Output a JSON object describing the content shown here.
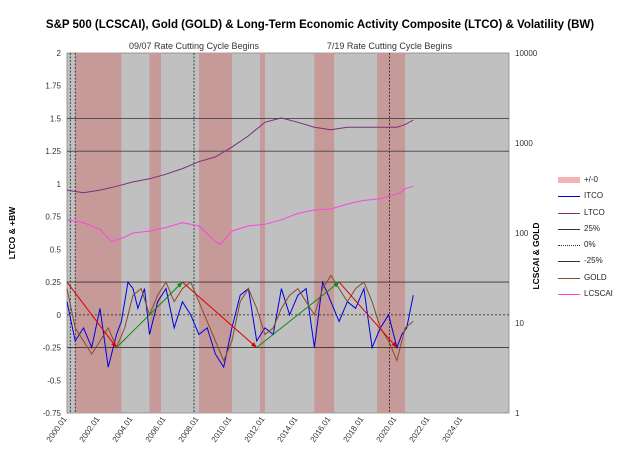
{
  "colors": {
    "plot_bg": "#c0c0c0",
    "band": "#c79a9a",
    "itco": "#0000dd",
    "ltco": "#7a2f7a",
    "gold": "#8b4a2a",
    "lcscai": "#ff44dd",
    "lines": "#333333",
    "arrow_down": "#dd0000",
    "arrow_up": "#118811"
  },
  "chart_data": {
    "type": "line",
    "title": "S&P 500 (LCSCAI), Gold (GOLD) & Long-Term Economic Activity Composite (LTCO) & Volatility (BW)",
    "ylabel_left": "LTCO & +BW",
    "ylabel_right": "LCSCAI & GOLD",
    "ylim_left": [
      -0.75,
      2
    ],
    "left_ticks": [
      "2",
      "1.75",
      "1.5",
      "1.25",
      "1",
      "0.75",
      "0.5",
      "0.25",
      "0",
      "-0.25",
      "-0.5",
      "-0.75"
    ],
    "left_tick_values": [
      2,
      1.75,
      1.5,
      1.25,
      1,
      0.75,
      0.5,
      0.25,
      0,
      -0.25,
      -0.5,
      -0.75
    ],
    "right_axis_scale": "log",
    "right_ticks": [
      "10000",
      "1000",
      "100",
      "10",
      "1"
    ],
    "right_tick_values": [
      10000,
      1000,
      100,
      10,
      1
    ],
    "x_range": [
      2000.0,
      2026.8
    ],
    "x_ticks": [
      "2000.01",
      "2002.01",
      "2004.01",
      "2006.01",
      "2008.01",
      "2010.01",
      "2012.01",
      "2014.01",
      "2016.01",
      "2018.01",
      "2020.01",
      "2022.01",
      "2024.01"
    ],
    "x_tick_values": [
      2000,
      2002,
      2004,
      2006,
      2008,
      2010,
      2012,
      2014,
      2016,
      2018,
      2020,
      2022,
      2024
    ],
    "annotations": [
      {
        "text": "09/07 Rate Cutting Cycle Begins",
        "x": 2007.7
      },
      {
        "text": "7/19 Rate Cutting Cycle Begins",
        "x": 2019.55
      }
    ],
    "event_lines": [
      2000.2,
      2000.5,
      2007.7,
      2019.55
    ],
    "bands": [
      [
        2000.5,
        2003.3
      ],
      [
        2005.0,
        2005.7
      ],
      [
        2008.0,
        2010.0
      ],
      [
        2011.7,
        2012.0
      ],
      [
        2015.0,
        2016.2
      ],
      [
        2018.8,
        2020.5
      ]
    ],
    "reference_lines": [
      {
        "name": "25%",
        "value": 0.25,
        "style": "solid"
      },
      {
        "name": "0%",
        "value": 0,
        "style": "dotted"
      },
      {
        "name": "-25%",
        "value": -0.25,
        "style": "solid"
      }
    ],
    "series": [
      {
        "name": "LTCO",
        "axis": "log",
        "x": [
          2000.0,
          2001.0,
          2002.0,
          2003.0,
          2004.0,
          2005.0,
          2006.0,
          2007.0,
          2008.0,
          2009.0,
          2010.0,
          2011.0,
          2012.0,
          2013.0,
          2014.0,
          2015.0,
          2016.0,
          2017.0,
          2018.0,
          2019.0,
          2020.0,
          2020.5,
          2021.0
        ],
        "values": [
          300,
          280,
          300,
          330,
          370,
          400,
          450,
          520,
          620,
          700,
          900,
          1200,
          1700,
          1900,
          1700,
          1500,
          1400,
          1500,
          1500,
          1500,
          1500,
          1600,
          1800
        ]
      },
      {
        "name": "LCSCAI",
        "axis": "log",
        "x": [
          2000.0,
          2001.0,
          2002.0,
          2002.7,
          2003.5,
          2004.0,
          2005.0,
          2006.0,
          2007.0,
          2008.0,
          2009.0,
          2009.3,
          2010.0,
          2011.0,
          2012.0,
          2013.0,
          2014.0,
          2015.0,
          2016.0,
          2017.0,
          2018.0,
          2019.0,
          2020.2,
          2020.5,
          2021.0
        ],
        "values": [
          140,
          130,
          110,
          80,
          90,
          100,
          105,
          115,
          130,
          120,
          80,
          75,
          105,
          120,
          125,
          140,
          165,
          180,
          185,
          210,
          230,
          240,
          280,
          310,
          330
        ]
      },
      {
        "name": "ITCO",
        "axis": "left",
        "x": [
          2000.0,
          2000.5,
          2001.0,
          2001.5,
          2002.0,
          2002.5,
          2003.0,
          2003.3,
          2003.7,
          2004.0,
          2004.3,
          2004.7,
          2005.0,
          2005.5,
          2006.0,
          2006.5,
          2007.0,
          2007.5,
          2008.0,
          2008.5,
          2009.0,
          2009.5,
          2010.0,
          2010.5,
          2011.0,
          2011.5,
          2012.0,
          2012.5,
          2013.0,
          2013.5,
          2014.0,
          2014.5,
          2015.0,
          2015.5,
          2016.0,
          2016.5,
          2017.0,
          2017.5,
          2018.0,
          2018.5,
          2019.0,
          2019.5,
          2020.0,
          2020.3,
          2020.6,
          2021.0
        ],
        "values": [
          0.1,
          -0.2,
          -0.1,
          -0.25,
          0.05,
          -0.4,
          -0.15,
          -0.05,
          0.25,
          0.2,
          0.05,
          0.2,
          -0.15,
          0.1,
          0.2,
          -0.1,
          0.1,
          0.0,
          -0.15,
          -0.1,
          -0.3,
          -0.4,
          -0.1,
          0.15,
          0.2,
          -0.2,
          -0.1,
          -0.15,
          0.2,
          0.0,
          0.15,
          0.2,
          -0.25,
          0.25,
          0.1,
          -0.05,
          0.1,
          0.05,
          0.2,
          -0.25,
          -0.1,
          0.0,
          -0.25,
          -0.15,
          -0.1,
          0.15
        ]
      },
      {
        "name": "GOLD",
        "axis": "left",
        "x": [
          2000.0,
          2000.5,
          2001.0,
          2001.5,
          2002.0,
          2002.5,
          2003.0,
          2003.5,
          2004.0,
          2004.5,
          2005.0,
          2005.5,
          2006.0,
          2006.5,
          2007.0,
          2007.5,
          2008.0,
          2008.5,
          2009.0,
          2009.5,
          2010.0,
          2010.5,
          2011.0,
          2011.5,
          2012.0,
          2012.5,
          2013.0,
          2013.5,
          2014.0,
          2014.5,
          2015.0,
          2015.5,
          2016.0,
          2016.5,
          2017.0,
          2017.5,
          2018.0,
          2018.5,
          2019.0,
          2019.5,
          2020.0,
          2020.5,
          2021.0
        ],
        "values": [
          0.2,
          -0.1,
          -0.2,
          -0.3,
          -0.2,
          -0.1,
          -0.25,
          -0.1,
          0.15,
          0.2,
          0.0,
          0.15,
          0.25,
          0.1,
          0.2,
          0.25,
          0.1,
          -0.05,
          -0.2,
          -0.35,
          -0.2,
          0.1,
          0.2,
          0.05,
          -0.15,
          -0.1,
          0.05,
          0.15,
          0.2,
          0.1,
          0.0,
          0.2,
          0.3,
          0.2,
          0.1,
          0.2,
          0.25,
          0.1,
          -0.1,
          -0.2,
          -0.35,
          -0.1,
          -0.05
        ]
      }
    ],
    "arrows": [
      {
        "from": [
          2000.0,
          0.25
        ],
        "to": [
          2003.0,
          -0.25
        ],
        "color": "down"
      },
      {
        "from": [
          2003.0,
          -0.25
        ],
        "to": [
          2007.0,
          0.25
        ],
        "color": "up"
      },
      {
        "from": [
          2007.0,
          0.25
        ],
        "to": [
          2011.5,
          -0.25
        ],
        "color": "down"
      },
      {
        "from": [
          2011.5,
          -0.25
        ],
        "to": [
          2016.5,
          0.25
        ],
        "color": "up"
      },
      {
        "from": [
          2016.5,
          0.25
        ],
        "to": [
          2020.0,
          -0.25
        ],
        "color": "down"
      }
    ],
    "legend": [
      "+/-0",
      "ITCO",
      "LTCO",
      "25%",
      "0%",
      "-25%",
      "GOLD",
      "LCSCAI"
    ]
  }
}
